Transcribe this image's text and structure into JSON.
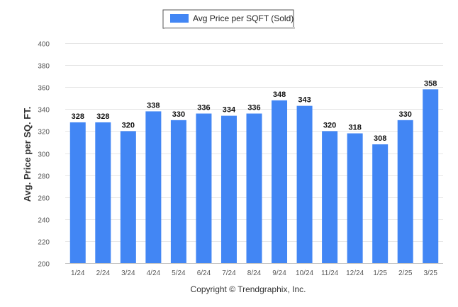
{
  "chart_data": {
    "type": "bar",
    "legend": {
      "label": "Avg Price per SQFT (Sold)",
      "position": "top-center"
    },
    "ylabel": "Avg. Price per SQ. FT.",
    "xlabel": "",
    "ylim": [
      200,
      400
    ],
    "yticks": [
      200,
      220,
      240,
      260,
      280,
      300,
      320,
      340,
      360,
      380,
      400
    ],
    "grid": true,
    "categories": [
      "1/24",
      "2/24",
      "3/24",
      "4/24",
      "5/24",
      "6/24",
      "7/24",
      "8/24",
      "9/24",
      "10/24",
      "11/24",
      "12/24",
      "1/25",
      "2/25",
      "3/25"
    ],
    "series": [
      {
        "name": "Avg Price per SQFT (Sold)",
        "values": [
          328,
          328,
          320,
          338,
          330,
          336,
          334,
          336,
          348,
          343,
          320,
          318,
          308,
          330,
          358
        ]
      }
    ],
    "bar_color": "#4286f4"
  },
  "footer": {
    "credit": "Copyright © Trendgraphix, Inc."
  }
}
